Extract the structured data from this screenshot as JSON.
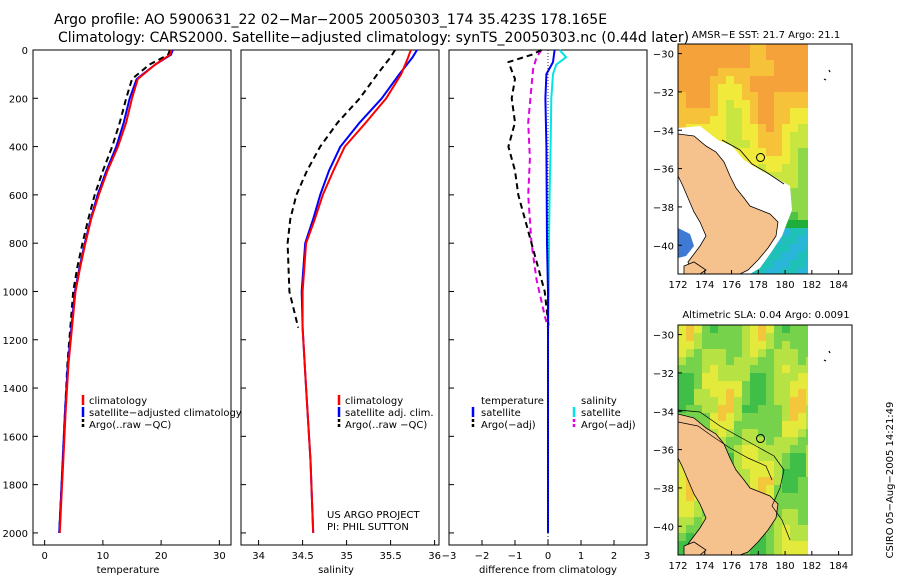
{
  "header": {
    "title_line1": "Argo profile: AO 5900631_22 02−Mar−2005 20050303_174 35.423S 178.165E",
    "title_line2": "Climatology: CARS2000. Satellite−adjusted climatology: synTS_20050303.nc (0.44d later)"
  },
  "side_stamp": "CSIRO 05−Aug−2005 14:21:49",
  "project_note": [
    "US ARGO PROJECT",
    "PI: PHIL SUTTON"
  ],
  "colors": {
    "climatology": "#ff0000",
    "satellite": "#0000ff",
    "argo": "#000000",
    "salinity_satellite": "#00e5e5",
    "salinity_argo": "#e000e0",
    "land": "#f5c28e"
  },
  "chart_data": [
    {
      "type": "line",
      "id": "temperature",
      "xlabel": "temperature",
      "xlim": [
        -2,
        32
      ],
      "xticks": [
        0,
        10,
        20,
        30
      ],
      "ylim": [
        2050,
        0
      ],
      "yticks": [
        0,
        200,
        400,
        600,
        800,
        1000,
        1200,
        1400,
        1600,
        1800,
        2000
      ],
      "legend": [
        "climatology",
        "satellite−adjusted climatology",
        "Argo(..raw −QC)"
      ],
      "series": [
        {
          "name": "climatology",
          "color": "#ff0000",
          "dash": false,
          "x": [
            21.8,
            21.5,
            19.0,
            16.0,
            15.0,
            14.0,
            12.6,
            10.8,
            9.3,
            8.0,
            7.0,
            6.1,
            5.3,
            4.7,
            4.1,
            3.6,
            3.2,
            2.9,
            2.6
          ],
          "y": [
            0,
            20,
            60,
            120,
            200,
            300,
            400,
            500,
            600,
            700,
            800,
            900,
            1000,
            1150,
            1300,
            1500,
            1700,
            1850,
            2000
          ]
        },
        {
          "name": "satellite−adjusted climatology",
          "color": "#0000ff",
          "dash": false,
          "x": [
            22.0,
            21.7,
            19.0,
            15.8,
            14.6,
            13.6,
            12.3,
            10.6,
            9.1,
            7.9,
            6.9,
            6.0,
            5.2,
            4.6,
            4.0,
            3.5,
            3.1,
            2.8,
            2.5
          ],
          "y": [
            0,
            20,
            60,
            120,
            200,
            300,
            400,
            500,
            600,
            700,
            800,
            900,
            1000,
            1150,
            1300,
            1500,
            1700,
            1850,
            2000
          ]
        },
        {
          "name": "Argo(..raw −QC)",
          "color": "#000000",
          "dash": true,
          "x": [
            21.5,
            21.2,
            18.0,
            15.0,
            14.0,
            12.9,
            11.6,
            10.0,
            8.6,
            7.5,
            6.5,
            5.6,
            4.9,
            4.4,
            3.9,
            3.5,
            3.1,
            2.8,
            2.5
          ],
          "y": [
            0,
            20,
            60,
            120,
            200,
            300,
            400,
            500,
            600,
            700,
            800,
            900,
            1000,
            1150,
            1300,
            1500,
            1700,
            1850,
            2000
          ]
        }
      ]
    },
    {
      "type": "line",
      "id": "salinity",
      "xlabel": "salinity",
      "xlim": [
        33.8,
        36.05
      ],
      "xticks": [
        34,
        34.5,
        35,
        35.5,
        36
      ],
      "ylim": [
        2050,
        0
      ],
      "legend": [
        "climatology",
        "satellite adj. clim.",
        "Argo(..raw −QC)"
      ],
      "series": [
        {
          "name": "climatology",
          "color": "#ff0000",
          "dash": false,
          "x": [
            35.73,
            35.7,
            35.62,
            35.45,
            35.22,
            34.98,
            34.85,
            34.73,
            34.64,
            34.54,
            34.5,
            34.5,
            34.54,
            34.59,
            34.62
          ],
          "y": [
            0,
            30,
            100,
            200,
            300,
            400,
            500,
            600,
            700,
            800,
            1000,
            1150,
            1400,
            1700,
            2000
          ]
        },
        {
          "name": "satellite adj. clim.",
          "color": "#0000ff",
          "dash": false,
          "x": [
            35.8,
            35.75,
            35.6,
            35.4,
            35.15,
            34.93,
            34.8,
            34.7,
            34.62,
            34.53,
            34.49,
            34.5,
            34.54,
            34.59,
            34.62
          ],
          "y": [
            0,
            30,
            100,
            200,
            300,
            400,
            500,
            600,
            700,
            800,
            1000,
            1150,
            1400,
            1700,
            2000
          ]
        },
        {
          "name": "Argo(..raw −QC)",
          "color": "#000000",
          "dash": true,
          "x": [
            35.55,
            35.5,
            35.35,
            35.15,
            34.9,
            34.7,
            34.55,
            34.43,
            34.36,
            34.33,
            34.35,
            34.45
          ],
          "y": [
            0,
            30,
            100,
            200,
            300,
            400,
            500,
            600,
            700,
            800,
            1000,
            1150
          ]
        }
      ]
    },
    {
      "type": "line",
      "id": "difference",
      "xlabel": "difference from climatology",
      "xlim": [
        -3,
        3
      ],
      "xticks": [
        -3,
        -2,
        -1,
        0,
        1,
        2,
        3
      ],
      "ylim": [
        2050,
        0
      ],
      "legend": [
        "temperature",
        "satellite",
        "Argo(−adj)",
        "salinity",
        "satellite",
        "Argo(−adj)"
      ],
      "series": [
        {
          "name": "temperature satellite",
          "color": "#0000ff",
          "dash": false,
          "x": [
            0.2,
            0.15,
            -0.05,
            -0.08,
            -0.05,
            -0.04,
            -0.03,
            0,
            0,
            0,
            0
          ],
          "y": [
            0,
            50,
            100,
            200,
            400,
            600,
            800,
            1000,
            1200,
            1600,
            2000
          ]
        },
        {
          "name": "temperature Argo(−adj)",
          "color": "#000000",
          "dash": true,
          "x": [
            -0.2,
            -0.5,
            -1.2,
            -1.0,
            -1.1,
            -1.0,
            -1.2,
            -1.0,
            -0.9,
            -0.7,
            -0.5,
            -0.3,
            -0.1,
            0.02
          ],
          "y": [
            0,
            20,
            50,
            120,
            200,
            300,
            400,
            500,
            600,
            700,
            800,
            900,
            1000,
            1150
          ]
        },
        {
          "name": "salinity satellite",
          "color": "#00e5e5",
          "dash": false,
          "x": [
            0.35,
            0.55,
            0.25,
            0.15,
            0.1,
            0.08,
            0.05,
            0.03,
            0.02,
            0,
            0,
            0
          ],
          "y": [
            0,
            30,
            60,
            100,
            200,
            400,
            600,
            800,
            1000,
            1200,
            1600,
            2000
          ]
        },
        {
          "name": "salinity Argo(−adj)",
          "color": "#e000e0",
          "dash": true,
          "x": [
            -0.2,
            -0.35,
            -0.45,
            -0.5,
            -0.6,
            -0.55,
            -0.6,
            -0.5,
            -0.35,
            -0.1,
            0
          ],
          "y": [
            0,
            30,
            80,
            150,
            300,
            450,
            600,
            800,
            950,
            1100,
            1150
          ]
        }
      ]
    },
    {
      "type": "heatmap",
      "id": "sst-map",
      "title": "AMSR−E SST: 21.7 Argo: 21.1",
      "xlim": [
        172,
        185
      ],
      "xticks": [
        172,
        174,
        176,
        178,
        180,
        182,
        184
      ],
      "ylim": [
        -41.5,
        -29.5
      ],
      "yticks": [
        -30,
        -32,
        -34,
        -36,
        -38,
        -40
      ],
      "marker": {
        "lon": 178.165,
        "lat": -35.423
      }
    },
    {
      "type": "heatmap",
      "id": "sla-map",
      "title": "Altimetric SLA: 0.04 Argo: 0.0091",
      "xlim": [
        172,
        185
      ],
      "xticks": [
        172,
        174,
        176,
        178,
        180,
        182,
        184
      ],
      "ylim": [
        -41.5,
        -29.5
      ],
      "yticks": [
        -30,
        -32,
        -34,
        -36,
        -38,
        -40
      ],
      "marker": {
        "lon": 178.165,
        "lat": -35.423
      }
    }
  ]
}
